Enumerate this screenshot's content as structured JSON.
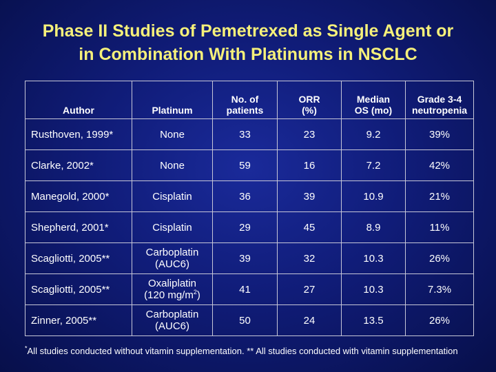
{
  "title": {
    "line1": "Phase II Studies of Pemetrexed as Single Agent or",
    "line2": "in Combination With Platinums in NSCLC"
  },
  "table": {
    "headers": {
      "author": "Author",
      "platinum": "Platinum",
      "patients_l1": "No. of",
      "patients_l2": "patients",
      "orr_l1": "ORR",
      "orr_l2": "(%)",
      "os_l1": "Median",
      "os_l2": "OS (mo)",
      "neut_l1": "Grade 3-4",
      "neut_l2": "neutropenia"
    },
    "rows": [
      {
        "author": "Rusthoven, 1999*",
        "platinum_l1": "None",
        "platinum_l2": "",
        "patients": "33",
        "orr": "23",
        "os": "9.2",
        "neutropenia": "39%"
      },
      {
        "author": "Clarke, 2002*",
        "platinum_l1": "None",
        "platinum_l2": "",
        "patients": "59",
        "orr": "16",
        "os": "7.2",
        "neutropenia": "42%"
      },
      {
        "author": "Manegold, 2000*",
        "platinum_l1": "Cisplatin",
        "platinum_l2": "",
        "patients": "36",
        "orr": "39",
        "os": "10.9",
        "neutropenia": "21%"
      },
      {
        "author": "Shepherd, 2001*",
        "platinum_l1": "Cisplatin",
        "platinum_l2": "",
        "patients": "29",
        "orr": "45",
        "os": "8.9",
        "neutropenia": "11%"
      },
      {
        "author": "Scagliotti, 2005**",
        "platinum_l1": "Carboplatin",
        "platinum_l2": "(AUC6)",
        "patients": "39",
        "orr": "32",
        "os": "10.3",
        "neutropenia": "26%"
      },
      {
        "author": "Scagliotti, 2005**",
        "platinum_l1": "Oxaliplatin",
        "platinum_l2": "(120 mg/m",
        "platinum_sup": "2",
        "platinum_l2_end": ")",
        "patients": "41",
        "orr": "27",
        "os": "10.3",
        "neutropenia": "7.3%"
      },
      {
        "author": "Zinner, 2005**",
        "platinum_l1": "Carboplatin",
        "platinum_l2": "(AUC6)",
        "patients": "50",
        "orr": "24",
        "os": "13.5",
        "neutropenia": "26%"
      }
    ]
  },
  "footnote": {
    "star": "*",
    "text": "All studies conducted without vitamin supplementation. ** All studies conducted with vitamin supplementation"
  },
  "colors": {
    "title": "#f5f07a",
    "text": "#ffffff",
    "background": "#101c78",
    "border": "#c8c8d8"
  }
}
